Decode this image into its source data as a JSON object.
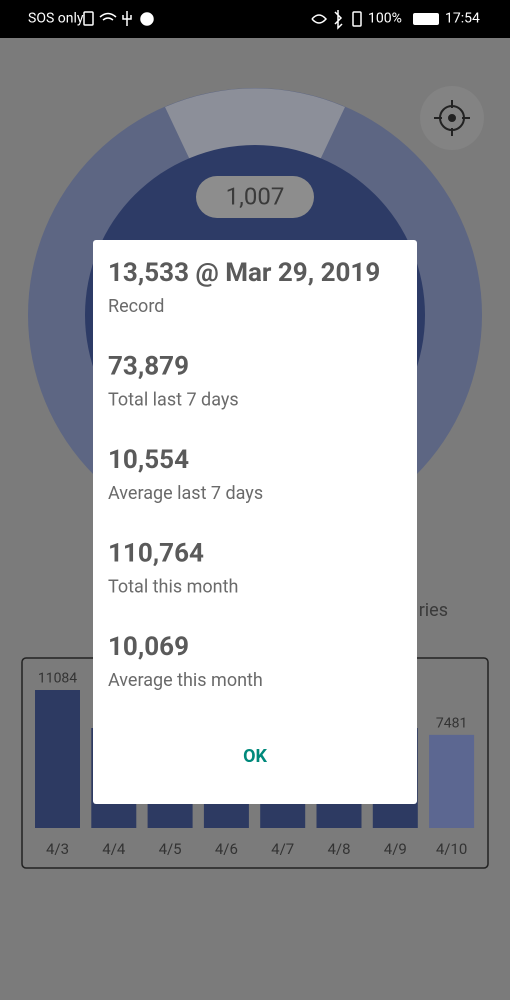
{
  "status_bar": {
    "carrier": "SOS only",
    "battery": "100%",
    "time": "17:54"
  },
  "dashboard": {
    "donut_value": "1,007",
    "legend_fragment": "ries"
  },
  "chart_data": {
    "type": "bar",
    "categories": [
      "4/3",
      "4/4",
      "4/5",
      "4/6",
      "4/7",
      "4/8",
      "4/9",
      "4/10"
    ],
    "values": [
      11084,
      null,
      null,
      null,
      null,
      null,
      null,
      7481
    ]
  },
  "dialog": {
    "items": [
      {
        "value": "13,533 @ Mar 29, 2019",
        "label": "Record"
      },
      {
        "value": "73,879",
        "label": "Total last 7 days"
      },
      {
        "value": "10,554",
        "label": "Average last 7 days"
      },
      {
        "value": "110,764",
        "label": "Total this month"
      },
      {
        "value": "10,069",
        "label": "Average this month"
      }
    ],
    "button": "OK"
  }
}
